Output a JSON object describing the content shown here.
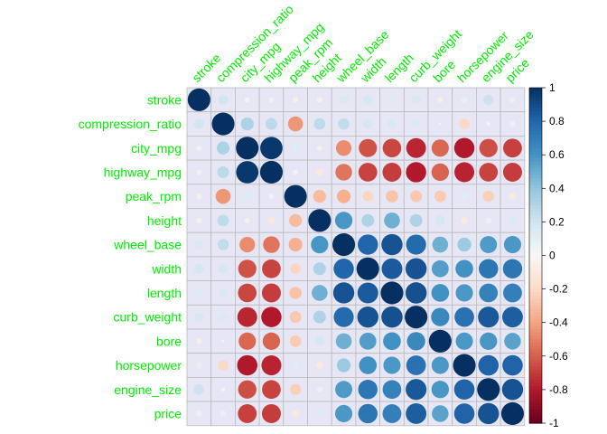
{
  "chart_data": {
    "type": "heatmap",
    "variables": [
      "stroke",
      "compression_ratio",
      "city_mpg",
      "highway_mpg",
      "peak_rpm",
      "height",
      "wheel_base",
      "width",
      "length",
      "curb_weight",
      "bore",
      "horsepower",
      "engine_size",
      "price"
    ],
    "matrix": [
      [
        1.0,
        0.19,
        0.05,
        0.05,
        -0.06,
        -0.06,
        0.16,
        0.18,
        0.13,
        0.17,
        -0.06,
        0.09,
        0.21,
        0.08
      ],
      [
        0.19,
        1.0,
        0.32,
        0.27,
        -0.44,
        0.26,
        0.25,
        0.18,
        0.16,
        0.15,
        0.01,
        -0.21,
        0.03,
        0.07
      ],
      [
        0.05,
        0.32,
        1.0,
        0.97,
        0.12,
        -0.05,
        -0.47,
        -0.64,
        -0.67,
        -0.76,
        -0.58,
        -0.8,
        -0.65,
        -0.69
      ],
      [
        0.05,
        0.27,
        0.97,
        1.0,
        0.05,
        -0.11,
        -0.54,
        -0.68,
        -0.7,
        -0.8,
        -0.59,
        -0.77,
        -0.68,
        -0.7
      ],
      [
        -0.06,
        -0.44,
        0.12,
        0.05,
        1.0,
        -0.32,
        -0.36,
        -0.22,
        -0.29,
        -0.27,
        -0.26,
        0.11,
        -0.24,
        -0.1
      ],
      [
        -0.06,
        0.26,
        -0.05,
        -0.11,
        -0.32,
        1.0,
        0.59,
        0.31,
        0.49,
        0.31,
        0.18,
        -0.09,
        0.07,
        0.14
      ],
      [
        0.16,
        0.25,
        -0.47,
        -0.54,
        -0.36,
        0.59,
        1.0,
        0.8,
        0.87,
        0.78,
        0.49,
        0.37,
        0.57,
        0.58
      ],
      [
        0.18,
        0.18,
        -0.64,
        -0.68,
        -0.22,
        0.31,
        0.8,
        1.0,
        0.84,
        0.87,
        0.56,
        0.61,
        0.73,
        0.73
      ],
      [
        0.13,
        0.16,
        -0.67,
        -0.7,
        -0.29,
        0.49,
        0.87,
        0.84,
        1.0,
        0.88,
        0.61,
        0.58,
        0.68,
        0.69
      ],
      [
        0.17,
        0.15,
        -0.76,
        -0.8,
        -0.27,
        0.31,
        0.78,
        0.87,
        0.88,
        1.0,
        0.65,
        0.75,
        0.85,
        0.83
      ],
      [
        -0.06,
        0.01,
        -0.58,
        -0.59,
        -0.26,
        0.18,
        0.49,
        0.56,
        0.61,
        0.65,
        1.0,
        0.58,
        0.59,
        0.54
      ],
      [
        0.09,
        -0.21,
        -0.8,
        -0.77,
        0.11,
        -0.09,
        0.37,
        0.61,
        0.58,
        0.75,
        0.58,
        1.0,
        0.81,
        0.81
      ],
      [
        0.21,
        0.03,
        -0.65,
        -0.68,
        -0.24,
        0.07,
        0.57,
        0.73,
        0.68,
        0.85,
        0.59,
        0.81,
        1.0,
        0.87
      ],
      [
        0.08,
        0.07,
        -0.69,
        -0.7,
        -0.1,
        0.14,
        0.58,
        0.73,
        0.69,
        0.83,
        0.54,
        0.81,
        0.87,
        1.0
      ]
    ],
    "colorbar": {
      "range": [
        -1,
        1
      ],
      "ticks": [
        "1",
        "0.8",
        "0.6",
        "0.4",
        "0.2",
        "0",
        "-0.2",
        "-0.4",
        "-0.6",
        "-0.8",
        "-1"
      ]
    },
    "colors": {
      "label": "#00ee00",
      "negative_end": "#67001f",
      "positive_end": "#053061",
      "midpoint": "#f7f7f7",
      "cell_background": "#e6e6f5",
      "grid": "#bbbbbb"
    },
    "method": "circle",
    "grid": true,
    "legend": "right"
  }
}
